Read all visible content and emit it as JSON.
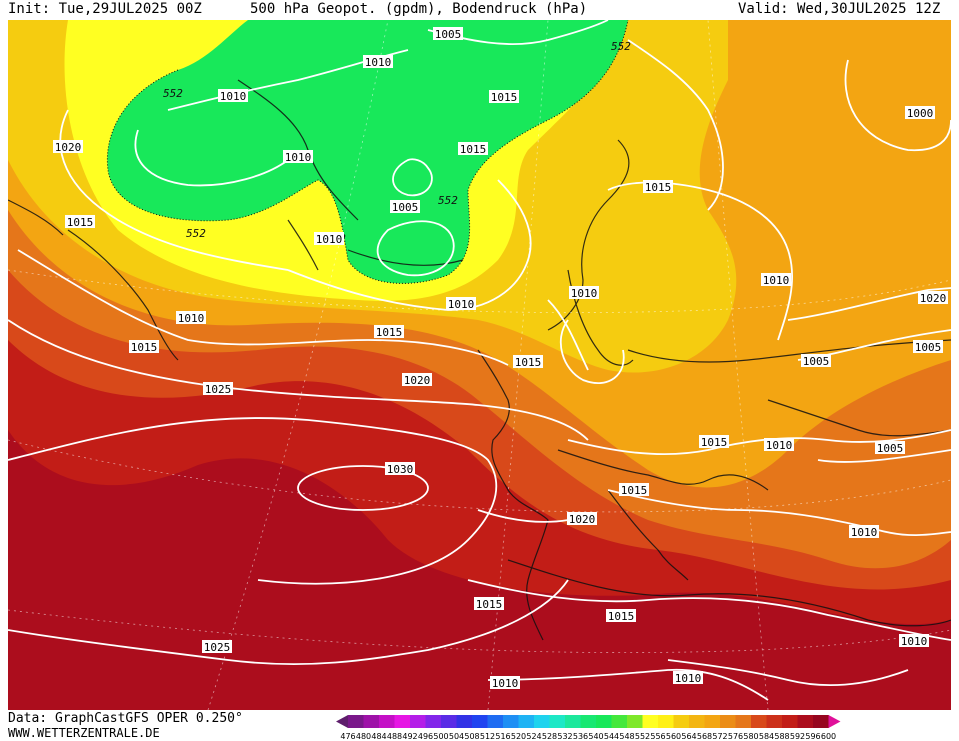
{
  "header": {
    "init": "Init: Tue,29JUL2025 00Z",
    "title": "500 hPa Geopot. (gpdm), Bodendruck (hPa)",
    "valid": "Valid: Wed,30JUL2025 12Z"
  },
  "footer": {
    "data_source": "Data: GraphCastGFS OPER 0.250°",
    "website": "WWW.WETTERZENTRALE.DE"
  },
  "colors": {
    "green": "#18e85a",
    "yellow": "#ffff22",
    "gold": "#f5cc10",
    "orange": "#f3a512",
    "dark_orange": "#e5761a",
    "red_orange": "#d8491a",
    "red": "#c21d17",
    "dark_red": "#ac0d1d",
    "contour": "#ffffff",
    "coast": "#111111"
  },
  "scale": {
    "labels": [
      "476",
      "480",
      "484",
      "488",
      "492",
      "496",
      "500",
      "504",
      "508",
      "512",
      "516",
      "520",
      "524",
      "528",
      "532",
      "536",
      "540",
      "544",
      "548",
      "552",
      "556",
      "560",
      "564",
      "568",
      "572",
      "576",
      "580",
      "584",
      "588",
      "592",
      "596",
      "600"
    ],
    "colors": [
      "#5e1e6c",
      "#7a188a",
      "#9e12a8",
      "#c410c6",
      "#e616e4",
      "#b41ee8",
      "#8226ea",
      "#5a2ce6",
      "#3232e6",
      "#2044f0",
      "#1f6cf2",
      "#1f8ff4",
      "#1fb3f4",
      "#1fd3ee",
      "#1de8c6",
      "#1ce89c",
      "#18e872",
      "#18e85a",
      "#44e83c",
      "#7ee82a",
      "#ffff22",
      "#fff016",
      "#f5cc10",
      "#f3b512",
      "#f3a512",
      "#eb8c16",
      "#e5761a",
      "#d8491a",
      "#cc301a",
      "#c21d17",
      "#ac0d1d",
      "#96061f",
      "#e0109a"
    ]
  },
  "map": {
    "height_label": "552",
    "pressure_labels": [
      {
        "text": "1005"
      },
      {
        "text": "1010"
      },
      {
        "text": "1010"
      },
      {
        "text": "1015"
      },
      {
        "text": "1020"
      },
      {
        "text": "1010"
      },
      {
        "text": "1015"
      },
      {
        "text": "1000"
      },
      {
        "text": "1015"
      },
      {
        "text": "1005"
      },
      {
        "text": "1010"
      },
      {
        "text": "1010"
      },
      {
        "text": "1015"
      },
      {
        "text": "1010"
      },
      {
        "text": "1010"
      },
      {
        "text": "1015"
      },
      {
        "text": "1010"
      },
      {
        "text": "1015"
      },
      {
        "text": "1020"
      },
      {
        "text": "1005"
      },
      {
        "text": "1005"
      },
      {
        "text": "1020"
      },
      {
        "text": "1025"
      },
      {
        "text": "1015"
      },
      {
        "text": "1010"
      },
      {
        "text": "1005"
      },
      {
        "text": "1030"
      },
      {
        "text": "1015"
      },
      {
        "text": "1020"
      },
      {
        "text": "1010"
      },
      {
        "text": "1015"
      },
      {
        "text": "1015"
      },
      {
        "text": "1015"
      },
      {
        "text": "1025"
      },
      {
        "text": "1010"
      },
      {
        "text": "1010"
      },
      {
        "text": "1010"
      }
    ]
  }
}
